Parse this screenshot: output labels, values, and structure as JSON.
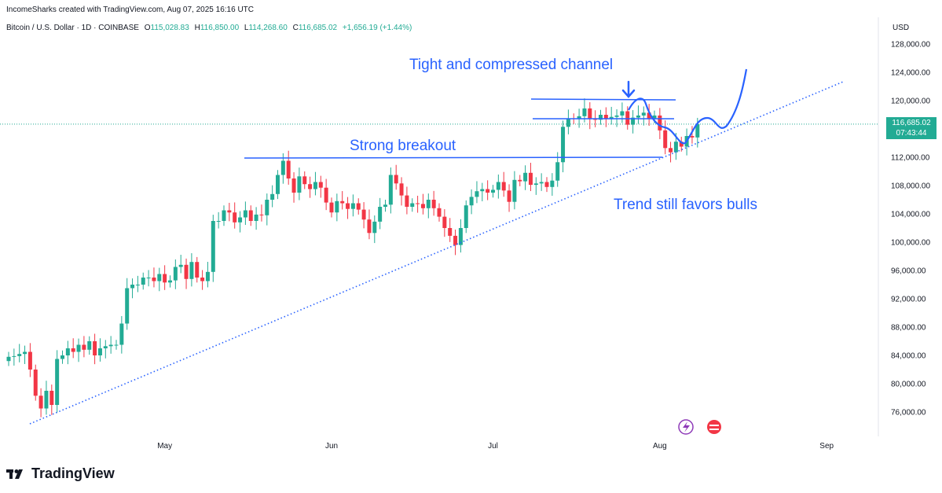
{
  "header": {
    "text": "IncomeSharks created with TradingView.com, Aug 07, 2025 16:16 UTC"
  },
  "legend": {
    "symbol": "Bitcoin / U.S. Dollar · 1D · COINBASE",
    "open_label": "O",
    "open": "115,028.83",
    "high_label": "H",
    "high": "116,850.00",
    "low_label": "L",
    "low": "114,268.60",
    "close_label": "C",
    "close": "116,685.02",
    "change": "+1,656.19 (+1.44%)"
  },
  "axis": {
    "currency": "USD"
  },
  "price_tag": {
    "price": "116,685.02",
    "countdown": "07:43:44"
  },
  "annotations": {
    "channel": "Tight and compressed channel",
    "breakout": "Strong breakout",
    "trend": "Trend still favors bulls"
  },
  "brand": {
    "name": "TradingView",
    "color": "#131722"
  },
  "colors": {
    "up": "#22ab94",
    "down": "#f23645",
    "annotation": "#2962ff",
    "tag": "#22ab94"
  },
  "chart_data": {
    "type": "candlestick",
    "title": "Bitcoin / U.S. Dollar · 1D · COINBASE",
    "ylabel": "USD",
    "ylim": [
      72000,
      130000
    ],
    "y_ticks": [
      "128,000.00",
      "124,000.00",
      "120,000.00",
      "116,685.02",
      "112,000.00",
      "108,000.00",
      "104,000.00",
      "100,000.00",
      "96,000.00",
      "92,000.00",
      "88,000.00",
      "84,000.00",
      "80,000.00",
      "76,000.00"
    ],
    "y_tick_values": [
      128000,
      124000,
      120000,
      116685.02,
      112000,
      108000,
      104000,
      100000,
      96000,
      92000,
      88000,
      84000,
      80000,
      76000
    ],
    "x_ticks": [
      {
        "label": "May",
        "index": 29
      },
      {
        "label": "Jun",
        "index": 60
      },
      {
        "label": "Jul",
        "index": 90
      },
      {
        "label": "Aug",
        "index": 121
      },
      {
        "label": "Sep",
        "index": 152
      }
    ],
    "close_start": 83200,
    "closes": [
      83800,
      83900,
      84200,
      84500,
      82000,
      78300,
      76500,
      79000,
      77000,
      83500,
      84000,
      85000,
      84500,
      85500,
      84800,
      86000,
      84000,
      85000,
      85300,
      85500,
      85500,
      88500,
      93500,
      94000,
      94000,
      95000,
      95000,
      94500,
      95500,
      94300,
      94600,
      96500,
      96800,
      94800,
      97200,
      95000,
      94500,
      95800,
      103000,
      103000,
      104500,
      104200,
      102800,
      103500,
      104500,
      103000,
      103900,
      103800,
      106000,
      106800,
      109500,
      111500,
      109000,
      107000,
      109300,
      108200,
      107500,
      108500,
      107700,
      105600,
      104200,
      105800,
      105500,
      104700,
      105500,
      104600,
      103200,
      101300,
      102900,
      105000,
      105300,
      109500,
      108300,
      106600,
      105000,
      105500,
      105400,
      104800,
      106000,
      104800,
      103600,
      102000,
      100900,
      99600,
      102000,
      105200,
      106400,
      107200,
      107500,
      107000,
      107400,
      108500,
      107300,
      105700,
      108800,
      108600,
      109800,
      108100,
      108300,
      108500,
      107800,
      108700,
      111300,
      116300,
      117500,
      117400,
      117800,
      118900,
      117400,
      117300,
      118000,
      117500,
      117700,
      117900,
      118500,
      116600,
      117600,
      117900,
      118300,
      117500,
      117900,
      115800,
      113300,
      112700,
      114200,
      113500,
      115000,
      114800,
      116685
    ]
  }
}
